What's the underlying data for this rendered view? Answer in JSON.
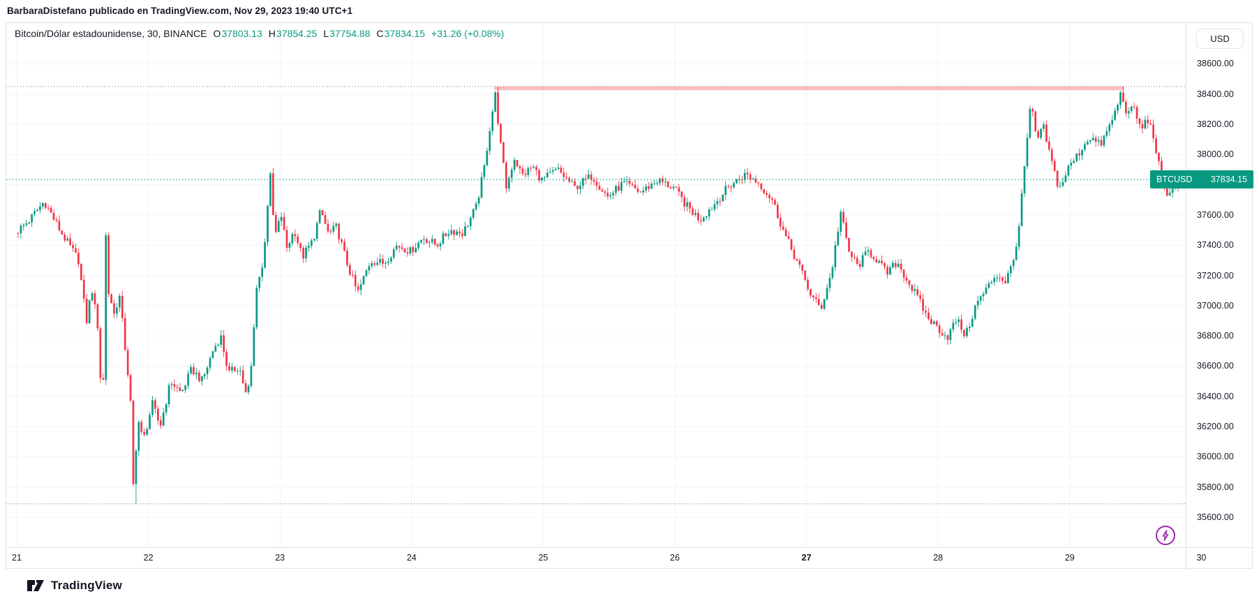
{
  "header": {
    "attribution": "BarbaraDistefano publicado en TradingView.com, Nov 29, 2023 19:40 UTC+1"
  },
  "title_bar": {
    "symbol_line": "Bitcoin/Dólar estadounidense, 30, BINANCE",
    "ohlc": {
      "open_label": "O",
      "open": "37803.13",
      "high_label": "H",
      "high": "37854.25",
      "low_label": "L",
      "low": "37754.88",
      "close_label": "C",
      "close": "37834.15",
      "change": "+31.26 (+0.08%)"
    }
  },
  "price_axis": {
    "currency_chip": "USD",
    "labels": [
      "38600.00",
      "38400.00",
      "38200.00",
      "38000.00",
      "37800.00",
      "37600.00",
      "37400.00",
      "37200.00",
      "37000.00",
      "36800.00",
      "36600.00",
      "36400.00",
      "36200.00",
      "36000.00",
      "35800.00",
      "35600.00"
    ]
  },
  "time_axis": {
    "labels": [
      {
        "text": "21",
        "bold": false
      },
      {
        "text": "22",
        "bold": false
      },
      {
        "text": "23",
        "bold": false
      },
      {
        "text": "24",
        "bold": false
      },
      {
        "text": "25",
        "bold": false
      },
      {
        "text": "26",
        "bold": false
      },
      {
        "text": "27",
        "bold": true
      },
      {
        "text": "28",
        "bold": false
      },
      {
        "text": "29",
        "bold": false
      },
      {
        "text": "30",
        "bold": false
      }
    ]
  },
  "price_line_tag": {
    "symbol": "BTCUSD",
    "value": "37834.15"
  },
  "logo": {
    "text": "TradingView"
  },
  "colors": {
    "up": "#089981",
    "down": "#f23645",
    "grid": "#f0f3fa",
    "axis_text": "#131722",
    "border": "#e0e3eb",
    "current_line": "#089981",
    "range_dotted": "#50535e",
    "pink_line": "#f77c80",
    "flash_button": "#9c27b0"
  },
  "chart_data": {
    "type": "candlestick",
    "symbol": "BTCUSD",
    "exchange": "BINANCE",
    "interval_minutes": 30,
    "visible_range": {
      "start": "Nov 21 2023 00:00",
      "end": "Nov 29 2023 19:40 UTC+1"
    },
    "price_axis_range": [
      35600,
      38600
    ],
    "price_grid_step": 200,
    "day_labels": [
      "21",
      "22",
      "23",
      "24",
      "25",
      "26",
      "27",
      "28",
      "29",
      "30"
    ],
    "highest_high": 38450,
    "lowest_low": 35688,
    "current_price": 37834.15,
    "last_candle": {
      "open": 37803.13,
      "high": 37854.25,
      "low": 37754.88,
      "close": 37834.15
    },
    "pink_trendline": {
      "from_day": 3.64,
      "to_day": 8.4,
      "price": 38438
    },
    "candle_count": 424,
    "anchors": [
      [
        0.0,
        37480
      ],
      [
        0.1,
        37560
      ],
      [
        0.22,
        37690
      ],
      [
        0.35,
        37480
      ],
      [
        0.48,
        37300
      ],
      [
        0.54,
        36890
      ],
      [
        0.58,
        37120
      ],
      [
        0.63,
        36840
      ],
      [
        0.655,
        36350
      ],
      [
        0.67,
        36550
      ],
      [
        0.685,
        37520
      ],
      [
        0.71,
        37050
      ],
      [
        0.76,
        36950
      ],
      [
        0.8,
        37060
      ],
      [
        0.845,
        36600
      ],
      [
        0.875,
        36350
      ],
      [
        0.895,
        35800
      ],
      [
        0.91,
        36000
      ],
      [
        0.935,
        36240
      ],
      [
        0.97,
        36100
      ],
      [
        1.04,
        36350
      ],
      [
        1.1,
        36200
      ],
      [
        1.18,
        36500
      ],
      [
        1.26,
        36420
      ],
      [
        1.34,
        36580
      ],
      [
        1.42,
        36500
      ],
      [
        1.5,
        36700
      ],
      [
        1.56,
        36800
      ],
      [
        1.62,
        36550
      ],
      [
        1.7,
        36600
      ],
      [
        1.76,
        36380
      ],
      [
        1.8,
        36650
      ],
      [
        1.83,
        37130
      ],
      [
        1.88,
        37260
      ],
      [
        1.935,
        37880
      ],
      [
        1.97,
        37450
      ],
      [
        2.02,
        37600
      ],
      [
        2.06,
        37380
      ],
      [
        2.12,
        37500
      ],
      [
        2.18,
        37320
      ],
      [
        2.26,
        37430
      ],
      [
        2.32,
        37630
      ],
      [
        2.38,
        37470
      ],
      [
        2.44,
        37520
      ],
      [
        2.52,
        37280
      ],
      [
        2.6,
        37080
      ],
      [
        2.7,
        37300
      ],
      [
        2.8,
        37280
      ],
      [
        2.9,
        37400
      ],
      [
        3.0,
        37360
      ],
      [
        3.1,
        37450
      ],
      [
        3.2,
        37400
      ],
      [
        3.3,
        37500
      ],
      [
        3.4,
        37480
      ],
      [
        3.5,
        37650
      ],
      [
        3.56,
        37900
      ],
      [
        3.6,
        38150
      ],
      [
        3.645,
        38400
      ],
      [
        3.69,
        38040
      ],
      [
        3.73,
        37780
      ],
      [
        3.79,
        37980
      ],
      [
        3.85,
        37860
      ],
      [
        3.93,
        37920
      ],
      [
        4.0,
        37830
      ],
      [
        4.12,
        37900
      ],
      [
        4.25,
        37780
      ],
      [
        4.38,
        37860
      ],
      [
        4.5,
        37720
      ],
      [
        4.62,
        37810
      ],
      [
        4.75,
        37750
      ],
      [
        4.88,
        37830
      ],
      [
        5.0,
        37780
      ],
      [
        5.1,
        37660
      ],
      [
        5.2,
        37570
      ],
      [
        5.3,
        37660
      ],
      [
        5.42,
        37790
      ],
      [
        5.55,
        37870
      ],
      [
        5.65,
        37810
      ],
      [
        5.75,
        37700
      ],
      [
        5.85,
        37460
      ],
      [
        5.95,
        37270
      ],
      [
        6.05,
        37060
      ],
      [
        6.12,
        36980
      ],
      [
        6.2,
        37220
      ],
      [
        6.27,
        37620
      ],
      [
        6.33,
        37360
      ],
      [
        6.4,
        37260
      ],
      [
        6.48,
        37360
      ],
      [
        6.55,
        37300
      ],
      [
        6.62,
        37210
      ],
      [
        6.7,
        37290
      ],
      [
        6.78,
        37160
      ],
      [
        6.85,
        37060
      ],
      [
        6.93,
        36920
      ],
      [
        7.0,
        36860
      ],
      [
        7.08,
        36790
      ],
      [
        7.15,
        36910
      ],
      [
        7.22,
        36800
      ],
      [
        7.3,
        37010
      ],
      [
        7.38,
        37110
      ],
      [
        7.45,
        37210
      ],
      [
        7.52,
        37160
      ],
      [
        7.58,
        37280
      ],
      [
        7.63,
        37560
      ],
      [
        7.67,
        37950
      ],
      [
        7.715,
        38340
      ],
      [
        7.76,
        38090
      ],
      [
        7.81,
        38180
      ],
      [
        7.87,
        37960
      ],
      [
        7.93,
        37770
      ],
      [
        8.0,
        37910
      ],
      [
        8.08,
        38010
      ],
      [
        8.16,
        38120
      ],
      [
        8.24,
        38060
      ],
      [
        8.3,
        38160
      ],
      [
        8.36,
        38290
      ],
      [
        8.4,
        38410
      ],
      [
        8.45,
        38260
      ],
      [
        8.5,
        38310
      ],
      [
        8.55,
        38160
      ],
      [
        8.6,
        38240
      ],
      [
        8.65,
        38110
      ],
      [
        8.7,
        37870
      ],
      [
        8.74,
        37710
      ],
      [
        8.78,
        37790
      ],
      [
        8.82,
        37834
      ]
    ],
    "special_candles": [
      {
        "index": 43,
        "force_low": 35688
      },
      {
        "index": 175,
        "force_high": 38450
      },
      {
        "index": 403,
        "force_high": 38450
      }
    ]
  }
}
